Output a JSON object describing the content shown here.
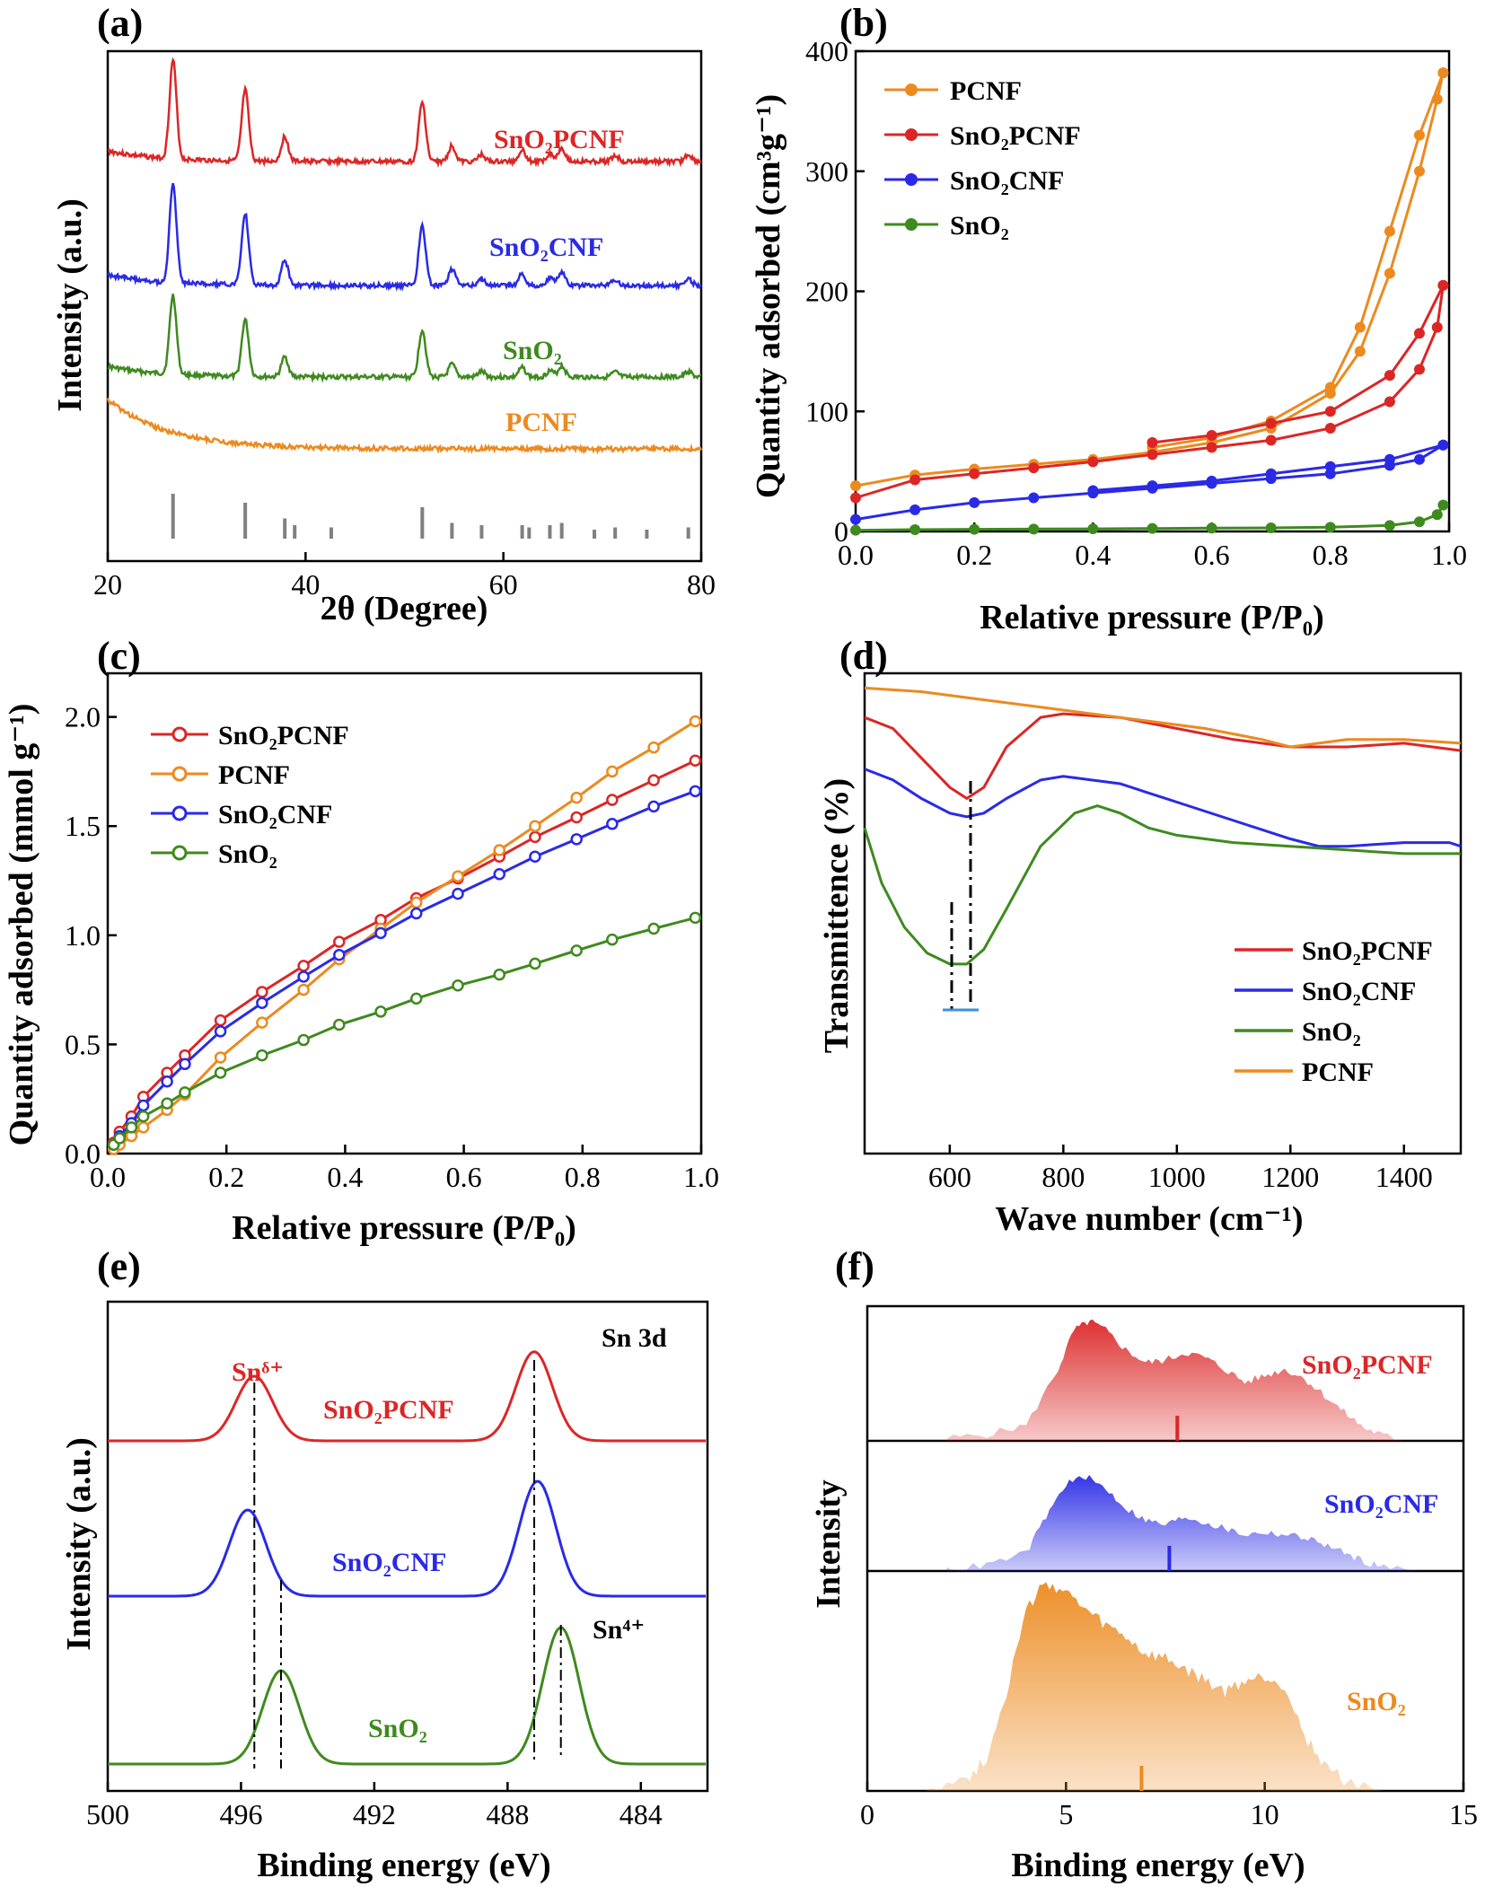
{
  "colors": {
    "red": "#dc2626",
    "blue": "#2a2ae6",
    "green": "#3f8a1f",
    "orange": "#ec8a1f",
    "gray": "#808080"
  },
  "chart_data": [
    {
      "id": "a",
      "panel_label": "(a)",
      "type": "line",
      "title": "",
      "xlabel": "2θ (Degree)",
      "ylabel": "Intensity (a.u.)",
      "xlim": [
        20,
        80
      ],
      "xticks": [
        "20",
        "40",
        "60",
        "80"
      ],
      "series": [
        {
          "name": "SnO₂PCNF",
          "color": "red",
          "baseline": 120,
          "offset": 0,
          "sharp": 1.0
        },
        {
          "name": "SnO₂CNF",
          "color": "blue",
          "baseline": 70,
          "offset": 0,
          "sharp": 1.0
        },
        {
          "name": "SnO₂",
          "color": "green",
          "baseline": 25,
          "offset": 0,
          "sharp": 0.8
        },
        {
          "name": "PCNF",
          "color": "orange",
          "baseline": -15,
          "offset": 0,
          "sharp": 0
        }
      ],
      "reference_peaks": [
        26.6,
        33.9,
        37.9,
        38.9,
        42.6,
        51.8,
        54.8,
        57.8,
        61.9,
        62.6,
        64.7,
        65.9,
        69.2,
        71.3,
        74.5,
        78.7
      ],
      "reference_heights": [
        1.0,
        0.8,
        0.45,
        0.3,
        0.25,
        0.7,
        0.35,
        0.3,
        0.3,
        0.25,
        0.3,
        0.35,
        0.2,
        0.25,
        0.2,
        0.25
      ],
      "peaks": [
        {
          "x": 26.6,
          "h": 1.0
        },
        {
          "x": 33.9,
          "h": 0.72
        },
        {
          "x": 37.9,
          "h": 0.25
        },
        {
          "x": 51.8,
          "h": 0.6
        },
        {
          "x": 54.8,
          "h": 0.16
        },
        {
          "x": 57.8,
          "h": 0.07
        },
        {
          "x": 61.9,
          "h": 0.12
        },
        {
          "x": 64.7,
          "h": 0.08
        },
        {
          "x": 65.9,
          "h": 0.14
        },
        {
          "x": 71.3,
          "h": 0.06
        },
        {
          "x": 78.7,
          "h": 0.07
        }
      ],
      "legend": [
        "SnO₂PCNF",
        "SnO₂CNF",
        "SnO₂",
        "PCNF"
      ]
    },
    {
      "id": "b",
      "panel_label": "(b)",
      "type": "line",
      "title": "",
      "xlabel": "Relative pressure (P/P₀)",
      "ylabel": "Quantity adsorbed (cm³g⁻¹)",
      "xlim": [
        0,
        1
      ],
      "ylim": [
        0,
        400
      ],
      "xticks": [
        "0.0",
        "0.2",
        "0.4",
        "0.6",
        "0.8",
        "1.0"
      ],
      "yticks": [
        "0",
        "100",
        "200",
        "300",
        "400"
      ],
      "legend_position": "top-left",
      "series": [
        {
          "name": "PCNF",
          "color": "orange",
          "x": [
            0.0,
            0.1,
            0.2,
            0.3,
            0.4,
            0.5,
            0.6,
            0.7,
            0.8,
            0.85,
            0.9,
            0.95,
            0.98,
            0.99
          ],
          "y": [
            38,
            47,
            52,
            56,
            60,
            66,
            74,
            86,
            115,
            150,
            215,
            300,
            360,
            382
          ],
          "x_des": [
            0.99,
            0.95,
            0.9,
            0.85,
            0.8,
            0.7,
            0.6,
            0.5
          ],
          "y_des": [
            382,
            330,
            250,
            170,
            120,
            92,
            78,
            70
          ]
        },
        {
          "name": "SnO₂PCNF",
          "color": "red",
          "x": [
            0.0,
            0.1,
            0.2,
            0.3,
            0.4,
            0.5,
            0.6,
            0.7,
            0.8,
            0.9,
            0.95,
            0.98,
            0.99
          ],
          "y": [
            28,
            43,
            48,
            53,
            58,
            64,
            70,
            76,
            86,
            108,
            135,
            170,
            205
          ],
          "x_des": [
            0.99,
            0.95,
            0.9,
            0.8,
            0.7,
            0.6,
            0.5
          ],
          "y_des": [
            205,
            165,
            130,
            100,
            90,
            80,
            74
          ]
        },
        {
          "name": "SnO₂CNF",
          "color": "blue",
          "x": [
            0.0,
            0.1,
            0.2,
            0.3,
            0.4,
            0.5,
            0.6,
            0.7,
            0.8,
            0.9,
            0.95,
            0.99
          ],
          "y": [
            10,
            18,
            24,
            28,
            32,
            36,
            40,
            44,
            48,
            55,
            60,
            72
          ],
          "x_des": [
            0.99,
            0.9,
            0.8,
            0.7,
            0.6,
            0.5,
            0.4
          ],
          "y_des": [
            72,
            60,
            54,
            48,
            42,
            38,
            34
          ]
        },
        {
          "name": "SnO₂",
          "color": "green",
          "x": [
            0.0,
            0.1,
            0.2,
            0.3,
            0.4,
            0.5,
            0.6,
            0.7,
            0.8,
            0.9,
            0.95,
            0.98,
            0.99
          ],
          "y": [
            1,
            1.5,
            1.8,
            2,
            2.2,
            2.5,
            2.8,
            3,
            3.5,
            5,
            8,
            14,
            22
          ],
          "x_des": [],
          "y_des": []
        }
      ],
      "legend": [
        "PCNF",
        "SnO₂PCNF",
        "SnO₂CNF",
        "SnO₂"
      ]
    },
    {
      "id": "c",
      "panel_label": "(c)",
      "type": "line",
      "title": "",
      "xlabel": "Relative pressure (P/P₀)",
      "ylabel": "Quantity adsorbed (mmol g⁻¹)",
      "xlim": [
        0,
        1
      ],
      "ylim": [
        0,
        2.2
      ],
      "xticks": [
        "0.0",
        "0.2",
        "0.4",
        "0.6",
        "0.8",
        "1.0"
      ],
      "yticks": [
        "0.0",
        "0.5",
        "1.0",
        "1.5",
        "2.0"
      ],
      "legend_position": "top-left",
      "series": [
        {
          "name": "SnO₂PCNF",
          "color": "red",
          "x": [
            0.01,
            0.02,
            0.04,
            0.06,
            0.1,
            0.13,
            0.19,
            0.26,
            0.33,
            0.39,
            0.46,
            0.52,
            0.59,
            0.66,
            0.72,
            0.79,
            0.85,
            0.92,
            0.99
          ],
          "y": [
            0.05,
            0.1,
            0.17,
            0.26,
            0.37,
            0.45,
            0.61,
            0.74,
            0.86,
            0.97,
            1.07,
            1.17,
            1.26,
            1.36,
            1.45,
            1.54,
            1.62,
            1.71,
            1.8
          ]
        },
        {
          "name": "PCNF",
          "color": "orange",
          "x": [
            0.01,
            0.02,
            0.04,
            0.06,
            0.1,
            0.13,
            0.19,
            0.26,
            0.33,
            0.39,
            0.46,
            0.52,
            0.59,
            0.66,
            0.72,
            0.79,
            0.85,
            0.92,
            0.99
          ],
          "y": [
            0.02,
            0.04,
            0.08,
            0.12,
            0.2,
            0.27,
            0.44,
            0.6,
            0.75,
            0.89,
            1.03,
            1.15,
            1.27,
            1.39,
            1.5,
            1.63,
            1.75,
            1.86,
            1.98
          ]
        },
        {
          "name": "SnO₂CNF",
          "color": "blue",
          "x": [
            0.01,
            0.02,
            0.04,
            0.06,
            0.1,
            0.13,
            0.19,
            0.26,
            0.33,
            0.39,
            0.46,
            0.52,
            0.59,
            0.66,
            0.72,
            0.79,
            0.85,
            0.92,
            0.99
          ],
          "y": [
            0.04,
            0.08,
            0.14,
            0.22,
            0.33,
            0.41,
            0.56,
            0.69,
            0.81,
            0.91,
            1.01,
            1.1,
            1.19,
            1.28,
            1.36,
            1.44,
            1.51,
            1.59,
            1.66
          ]
        },
        {
          "name": "SnO₂",
          "color": "green",
          "x": [
            0.01,
            0.02,
            0.04,
            0.06,
            0.1,
            0.13,
            0.19,
            0.26,
            0.33,
            0.39,
            0.46,
            0.52,
            0.59,
            0.66,
            0.72,
            0.79,
            0.85,
            0.92,
            0.99
          ],
          "y": [
            0.04,
            0.07,
            0.12,
            0.17,
            0.23,
            0.28,
            0.37,
            0.45,
            0.52,
            0.59,
            0.65,
            0.71,
            0.77,
            0.82,
            0.87,
            0.93,
            0.98,
            1.03,
            1.08
          ]
        }
      ],
      "legend": [
        "SnO₂PCNF",
        "PCNF",
        "SnO₂CNF",
        "SnO₂"
      ]
    },
    {
      "id": "d",
      "panel_label": "(d)",
      "type": "line",
      "title": "",
      "xlabel": "Wave number (cm⁻¹)",
      "ylabel": "Transmittence (%)",
      "xlim": [
        450,
        1500
      ],
      "ylim": [
        0,
        100
      ],
      "xticks": [
        "600",
        "800",
        "1000",
        "1200",
        "1400"
      ],
      "legend_position": "bottom-right",
      "series": [
        {
          "name": "SnO₂PCNF",
          "color": "red",
          "x": [
            450,
            500,
            550,
            600,
            630,
            660,
            700,
            760,
            800,
            900,
            1000,
            1100,
            1200,
            1300,
            1400,
            1500
          ],
          "y": [
            88,
            85,
            77,
            69,
            66,
            69,
            80,
            88,
            89,
            88,
            85,
            82,
            80,
            80,
            81,
            79
          ]
        },
        {
          "name": "SnO₂CNF",
          "color": "blue",
          "x": [
            450,
            500,
            550,
            600,
            630,
            660,
            700,
            760,
            800,
            900,
            1000,
            1100,
            1200,
            1250,
            1300,
            1400,
            1480,
            1500
          ],
          "y": [
            74,
            71,
            66,
            62,
            61,
            62,
            66,
            71,
            72,
            70,
            65,
            60,
            55,
            53,
            53,
            54,
            54,
            53
          ]
        },
        {
          "name": "SnO₂",
          "color": "green",
          "x": [
            450,
            480,
            520,
            560,
            600,
            630,
            660,
            700,
            760,
            820,
            860,
            900,
            950,
            1000,
            1100,
            1200,
            1300,
            1400,
            1500
          ],
          "y": [
            58,
            43,
            31,
            24,
            21,
            21,
            25,
            36,
            53,
            62,
            64,
            62,
            58,
            56,
            54,
            53,
            52,
            51,
            51
          ]
        },
        {
          "name": "PCNF",
          "color": "orange",
          "x": [
            450,
            550,
            650,
            750,
            850,
            950,
            1050,
            1150,
            1200,
            1250,
            1300,
            1400,
            1500
          ],
          "y": [
            96,
            95,
            93,
            91,
            89,
            87,
            85,
            82,
            80,
            81,
            82,
            82,
            81
          ]
        }
      ],
      "legend": [
        "SnO₂PCNF",
        "SnO₂CNF",
        "SnO₂",
        "PCNF"
      ]
    },
    {
      "id": "e",
      "panel_label": "(e)",
      "type": "line",
      "title": "",
      "xlabel": "Binding energy (eV)",
      "ylabel": "Intensity (a.u.)",
      "xlim": [
        500,
        482
      ],
      "xticks": [
        "500",
        "496",
        "492",
        "488",
        "484"
      ],
      "annotations": [
        "Sn 3d",
        "Snᵟ⁺",
        "Sn⁴⁺"
      ],
      "series": [
        {
          "name": "SnO₂PCNF",
          "color": "red",
          "peaks": [
            {
              "x": 495.6,
              "h": 0.45
            },
            {
              "x": 487.2,
              "h": 0.62
            }
          ]
        },
        {
          "name": "SnO₂CNF",
          "color": "blue",
          "peaks": [
            {
              "x": 495.8,
              "h": 0.6
            },
            {
              "x": 487.1,
              "h": 0.8
            }
          ]
        },
        {
          "name": "SnO₂",
          "color": "green",
          "peaks": [
            {
              "x": 494.8,
              "h": 0.65
            },
            {
              "x": 486.4,
              "h": 0.95
            }
          ]
        }
      ],
      "legend": [
        "SnO₂PCNF",
        "SnO₂CNF",
        "SnO₂"
      ]
    },
    {
      "id": "f",
      "panel_label": "(f)",
      "type": "area",
      "title": "",
      "xlabel": "Binding energy (eV)",
      "ylabel": "Intensity",
      "xlim": [
        0,
        15
      ],
      "xticks": [
        "0",
        "5",
        "10",
        "15"
      ],
      "series": [
        {
          "name": "SnO₂PCNF",
          "color": "red",
          "x": [
            2,
            3,
            4,
            4.8,
            5.2,
            5.6,
            6,
            6.5,
            7,
            7.5,
            8,
            8.5,
            9,
            9.5,
            10,
            10.5,
            11,
            11.5,
            12,
            12.5,
            13,
            13.5
          ],
          "y": [
            0.02,
            0.05,
            0.12,
            0.55,
            0.85,
            0.92,
            0.85,
            0.7,
            0.6,
            0.62,
            0.68,
            0.64,
            0.55,
            0.45,
            0.5,
            0.55,
            0.48,
            0.35,
            0.22,
            0.1,
            0.04,
            0.01
          ],
          "marker": 7.8
        },
        {
          "name": "SnO₂CNF",
          "color": "blue",
          "x": [
            2,
            3,
            4,
            4.5,
            5,
            5.5,
            6,
            6.5,
            7,
            7.5,
            8,
            8.5,
            9,
            9.5,
            10,
            10.5,
            11,
            11.5,
            12,
            12.5,
            13,
            14
          ],
          "y": [
            0.01,
            0.05,
            0.15,
            0.45,
            0.72,
            0.78,
            0.68,
            0.52,
            0.42,
            0.38,
            0.45,
            0.4,
            0.35,
            0.3,
            0.32,
            0.3,
            0.28,
            0.22,
            0.15,
            0.08,
            0.03,
            0.01
          ],
          "marker": 7.6
        },
        {
          "name": "SnO₂",
          "color": "orange",
          "x": [
            1.5,
            2.5,
            3,
            3.5,
            4,
            4.5,
            5,
            5.5,
            6,
            6.5,
            7,
            7.5,
            8,
            8.5,
            9,
            9.5,
            10,
            10.5,
            11,
            11.5,
            12,
            13
          ],
          "y": [
            0.02,
            0.05,
            0.15,
            0.45,
            0.82,
            0.95,
            0.9,
            0.82,
            0.75,
            0.7,
            0.62,
            0.6,
            0.55,
            0.5,
            0.45,
            0.5,
            0.52,
            0.48,
            0.25,
            0.12,
            0.05,
            0.01
          ],
          "marker": 6.9
        }
      ],
      "legend": [
        "SnO₂PCNF",
        "SnO₂CNF",
        "SnO₂"
      ]
    }
  ]
}
